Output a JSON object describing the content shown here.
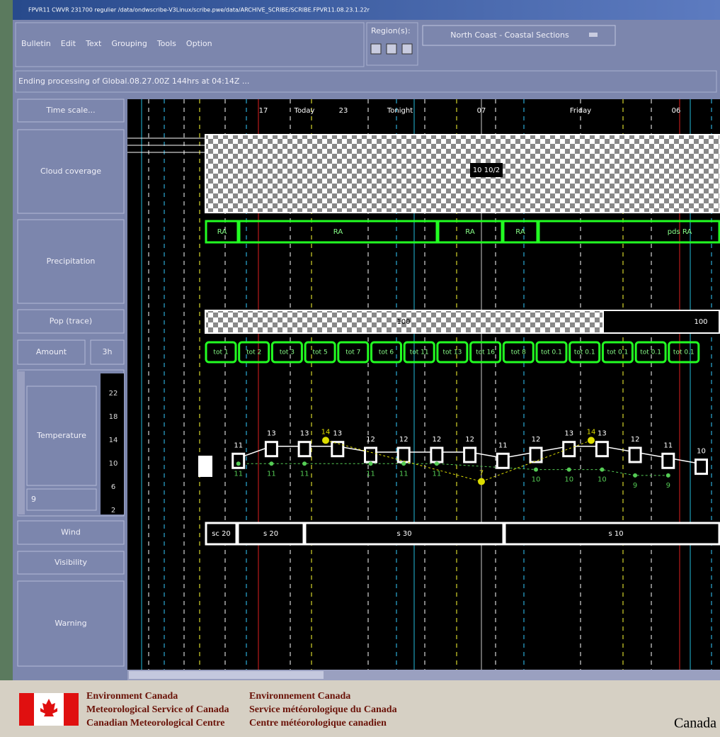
{
  "window": {
    "title": "FPVR11 CWVR 231700 regulier /data/ondwscribe-V3Linux/scribe.pwe/data/ARCHIVE_SCRIBE/SCRIBE.FPVR11.08.23.1.22r",
    "menu": [
      "Bulletin",
      "Edit",
      "Text",
      "Grouping",
      "Tools",
      "Option"
    ],
    "region_label": "Region(s):",
    "region": "North Coast - Coastal Sections",
    "status": "Ending processing of Global.08.27.00Z 144hrs at 04:14Z ..."
  },
  "rows": {
    "time_scale": "Time scale...",
    "cloud": "Cloud coverage",
    "precipitation": "Precipitation",
    "pop": "Pop (trace)",
    "amount": "Amount",
    "amount_step": "3h",
    "temperature": "Temperature",
    "temperature_input": "9",
    "wind": "Wind",
    "visibility": "Visibility",
    "warning": "Warning"
  },
  "temperature_scale": [
    "22",
    "18",
    "14",
    "10",
    "6",
    "2"
  ],
  "timeline": [
    "17",
    "Today",
    "23",
    "Tonight",
    "07",
    "Friday",
    "06"
  ],
  "cloud": {
    "label": "10 10/2"
  },
  "precipitation": [
    "RA",
    "RA",
    "RA",
    "RA",
    "pds RA"
  ],
  "pop": [
    "100",
    "100"
  ],
  "amount": [
    "tot 1",
    "tot 2",
    "tot 3",
    "tot 5",
    "tot 7",
    "tot 6",
    "tot 11",
    "tot 13",
    "tot 16",
    "tot 8",
    "tot 0.1",
    "tot 0.1",
    "tot 0.1",
    "tot 0.1",
    "tot 0.1"
  ],
  "temperature": {
    "upper": [
      null,
      11,
      13,
      13,
      13,
      12,
      12,
      12,
      12,
      11,
      12,
      13,
      13,
      12,
      11,
      10
    ],
    "lower": [
      null,
      11,
      11,
      11,
      null,
      11,
      11,
      11,
      null,
      null,
      10,
      10,
      10,
      9,
      9,
      null
    ],
    "extremes": [
      14,
      7,
      14
    ]
  },
  "wind": [
    "sc 20",
    "s 20",
    "s 30",
    "s 10"
  ],
  "footer": {
    "en": [
      "Environment Canada",
      "Meteorological Service of Canada",
      "Canadian Meteorological Centre"
    ],
    "fr": [
      "Environnement Canada",
      "Service météorologique du Canada",
      "Centre météorologique canadien"
    ],
    "wordmark": "Canada"
  }
}
